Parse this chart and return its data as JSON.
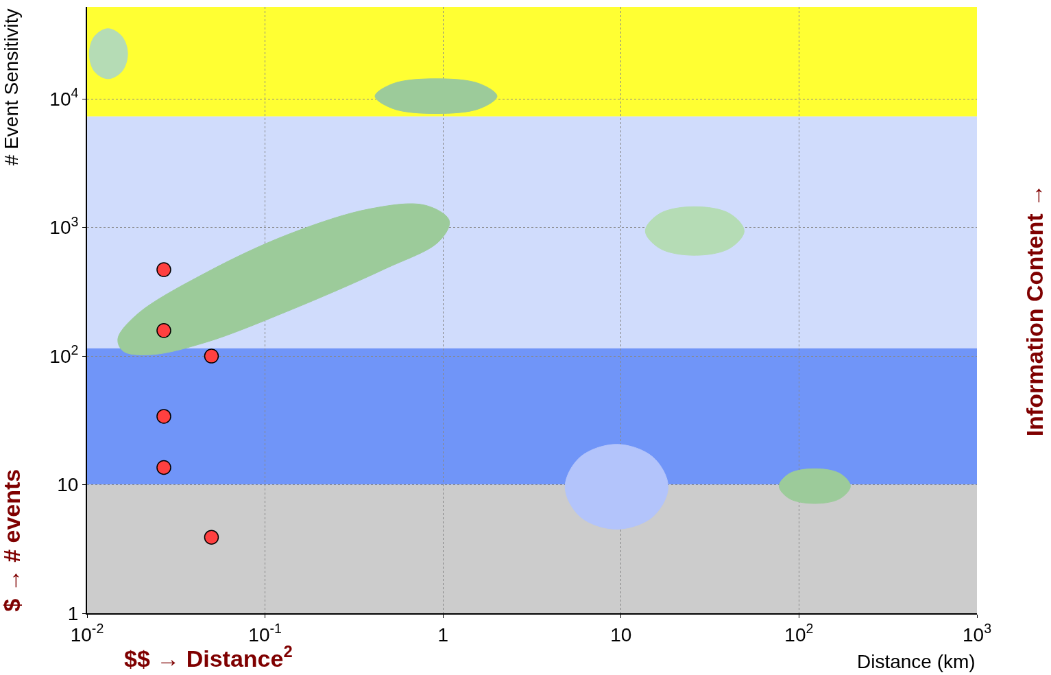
{
  "chart_data": {
    "type": "scatter",
    "xlabel": "Distance (km)",
    "ylabel": "# Event Sensitivity",
    "log": "xy",
    "grid": true,
    "xlim": [
      0.01,
      1000
    ],
    "ylim": [
      1,
      52000
    ],
    "xticks": [
      {
        "value": 0.01,
        "label": "10$^{-2}$"
      },
      {
        "value": 0.1,
        "label": "10$^{-1}$"
      },
      1,
      10,
      {
        "value": 100,
        "label": "10$^{2}$"
      },
      {
        "value": 1000,
        "label": "10$^{3}$"
      }
    ],
    "yticks": [
      1,
      10,
      {
        "value": 100,
        "label": "10$^{2}$"
      },
      {
        "value": 1000,
        "label": "10$^{3}$"
      },
      {
        "value": 10000,
        "label": "10$^{4}$"
      }
    ],
    "bands": [
      {
        "axis": "y",
        "from": 7300,
        "to": 52000,
        "color": "#ffff33"
      },
      {
        "axis": "y",
        "from": 115,
        "to": 7300,
        "color": "#d0dcfc"
      },
      {
        "axis": "y",
        "from": 10,
        "to": 115,
        "color": "#7095f8"
      },
      {
        "axis": "y",
        "from": 1,
        "to": 10,
        "color": "#cccccc"
      }
    ],
    "series": [
      {
        "type": "area",
        "color": "#b5dcb5",
        "x": [
          0.0169,
          0.0157,
          0.0131,
          0.011,
          0.0103,
          0.011,
          0.0131,
          0.0157,
          0.0169
        ],
        "values": [
          22400,
          16400,
          14350,
          16400,
          22400,
          30600,
          35200,
          30600,
          22400
        ]
      },
      {
        "type": "area",
        "color": "#9ccb9a",
        "x": [
          2.01,
          1.6,
          0.914,
          0.524,
          0.415,
          0.524,
          0.914,
          1.6,
          2.01
        ],
        "values": [
          10500,
          8400,
          7700,
          8400,
          10500,
          13150,
          14350,
          13150,
          10500
        ]
      },
      {
        "type": "area",
        "color": "#9ccb9a",
        "x": [
          0.0149,
          0.0191,
          0.0465,
          0.1346,
          0.391,
          0.794,
          1.084,
          0.949,
          0.467,
          0.1346,
          0.0465,
          0.0228,
          0.016,
          0.0149
        ],
        "values": [
          136,
          211,
          445,
          883,
          1400,
          1490,
          1130,
          780,
          474,
          224,
          128,
          102.5,
          109,
          136
        ]
      },
      {
        "type": "area",
        "color": "#b5dcb5",
        "x": [
          49.2,
          40.8,
          25.9,
          16.5,
          13.7,
          16.5,
          25.9,
          40.8,
          49.2
        ],
        "values": [
          940,
          689,
          608,
          689,
          940,
          1283,
          1452,
          1283,
          940
        ]
      },
      {
        "type": "area",
        "color": "#b3c4fb",
        "x": [
          18.4,
          15.1,
          9.44,
          5.9,
          4.85,
          5.9,
          9.44,
          15.1,
          18.4
        ],
        "values": [
          9.64,
          5.64,
          4.51,
          5.64,
          9.64,
          16.4,
          20.6,
          16.4,
          9.64
        ]
      },
      {
        "type": "area",
        "color": "#9ccb9a",
        "x": [
          194.5,
          170,
          123,
          88.3,
          77.3,
          88.3,
          123,
          170,
          194.5
        ],
        "values": [
          9.75,
          7.8,
          7.14,
          7.8,
          9.75,
          12.2,
          13.3,
          12.2,
          9.75
        ]
      },
      {
        "color": "#ff4040",
        "marker": "circle",
        "x": [
          0.027,
          0.027,
          0.05,
          0.027,
          0.027,
          0.05
        ],
        "values": [
          470,
          158,
          100,
          34,
          13.6,
          3.9
        ]
      }
    ],
    "annotations": [
      "$$ → Distance$^{2}$",
      "$ → # events",
      "Information Content →"
    ]
  }
}
